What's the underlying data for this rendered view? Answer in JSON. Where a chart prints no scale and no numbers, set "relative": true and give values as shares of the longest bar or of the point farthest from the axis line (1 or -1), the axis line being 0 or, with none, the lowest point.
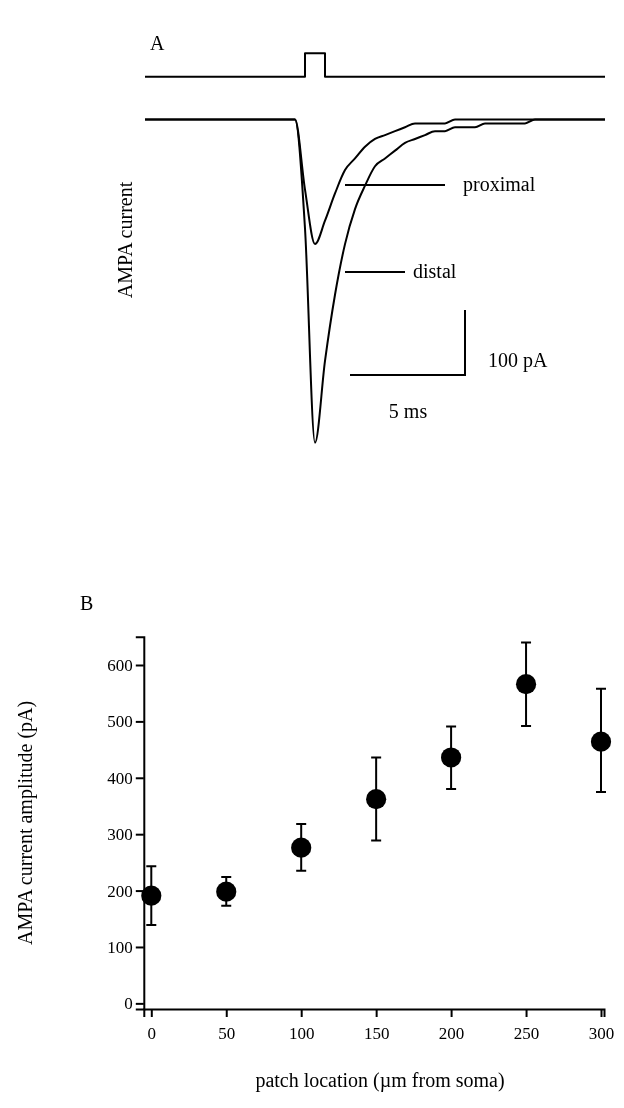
{
  "chart_data": [
    {
      "type": "line",
      "title": "A",
      "ylabel": "AMPA current",
      "relative": true,
      "legend": "right",
      "categories": [
        null,
        null,
        null,
        null,
        null,
        null,
        null,
        null,
        null,
        null,
        null,
        null,
        null,
        null,
        null,
        null,
        null,
        null,
        null,
        null,
        null,
        null,
        null,
        null,
        null,
        null,
        null,
        null,
        null,
        null,
        null,
        null,
        null,
        null,
        null,
        null,
        null,
        null,
        null,
        null,
        null,
        null,
        null,
        null,
        null,
        null,
        null
      ],
      "series": [
        {
          "type": "step",
          "color": "#000000",
          "values": [
            0.94,
            0.94,
            0.94,
            0.94,
            0.94,
            0.94,
            0.94,
            0.94,
            0.94,
            0.94,
            0.94,
            0.94,
            0.94,
            0.94,
            0.94,
            0.94,
            1,
            1,
            0.94,
            0.94,
            0.94,
            0.94,
            0.94,
            0.94,
            0.94,
            0.94,
            0.94,
            0.94,
            0.94,
            0.94,
            0.94,
            0.94,
            0.94,
            0.94,
            0.94,
            0.94,
            0.94,
            0.94,
            0.94,
            0.94,
            0.94,
            0.94,
            0.94,
            0.94,
            0.94,
            0.94,
            0.94
          ]
        },
        {
          "name": "proximal",
          "color": "#000000",
          "values": [
            0.83,
            0.83,
            0.83,
            0.83,
            0.83,
            0.83,
            0.83,
            0.83,
            0.83,
            0.83,
            0.83,
            0.83,
            0.83,
            0.83,
            0.83,
            0.83,
            0.65,
            0.51,
            0.57,
            0.64,
            0.7,
            0.73,
            0.76,
            0.78,
            0.79,
            0.8,
            0.81,
            0.82,
            0.82,
            0.82,
            0.82,
            0.83,
            0.83,
            0.83,
            0.83,
            0.83,
            0.83,
            0.83,
            0.83,
            0.83,
            0.83,
            0.83,
            0.83,
            0.83,
            0.83,
            0.83,
            0.83
          ]
        },
        {
          "name": "distal",
          "color": "#000000",
          "values": [
            0.83,
            0.83,
            0.83,
            0.83,
            0.83,
            0.83,
            0.83,
            0.83,
            0.83,
            0.83,
            0.83,
            0.83,
            0.83,
            0.83,
            0.83,
            0.83,
            0.55,
            0,
            0.21,
            0.38,
            0.51,
            0.6,
            0.66,
            0.71,
            0.73,
            0.75,
            0.77,
            0.78,
            0.79,
            0.8,
            0.8,
            0.81,
            0.81,
            0.81,
            0.82,
            0.82,
            0.82,
            0.82,
            0.82,
            0.83,
            0.83,
            0.83,
            0.83,
            0.83,
            0.83,
            0.83,
            0.83
          ]
        }
      ],
      "annotations": [
        "100 pA",
        "5 ms"
      ]
    },
    {
      "type": "scatter",
      "title": "B",
      "xlabel": "patch location (µm from soma)",
      "ylabel": "AMPA current amplitude (pA)",
      "marker": "circle",
      "grid": false,
      "x": [
        0,
        50,
        100,
        150,
        200,
        250,
        300
      ],
      "series": [
        {
          "color": "#000000",
          "values": [
            191,
            198,
            276,
            362,
            436,
            566,
            464
          ],
          "errors": [
            [
              139,
              243
            ],
            [
              173,
              224
            ],
            [
              235,
              318
            ],
            [
              289,
              436
            ],
            [
              380,
              491
            ],
            [
              492,
              640
            ],
            [
              375,
              558
            ]
          ]
        }
      ],
      "xlim": [
        -5,
        302
      ],
      "ylim": [
        -10,
        650
      ],
      "xticks": [
        0,
        50,
        100,
        150,
        200,
        250,
        300
      ],
      "yticks": [
        0,
        100,
        200,
        300,
        400,
        500,
        600
      ]
    }
  ]
}
